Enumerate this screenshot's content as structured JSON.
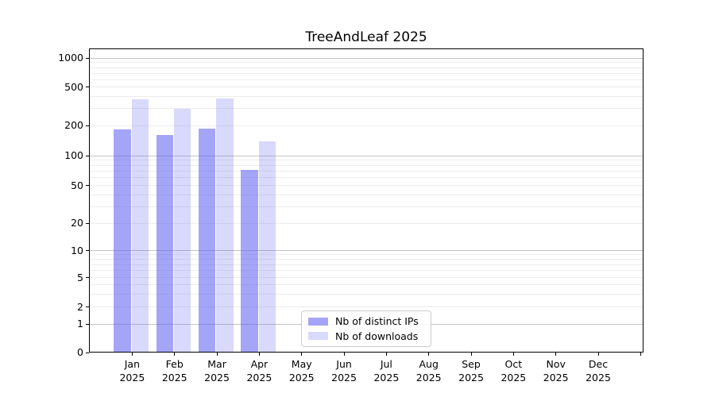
{
  "chart_data": {
    "type": "bar",
    "title": "TreeAndLeaf 2025",
    "year": "2025",
    "months": [
      "Jan",
      "Feb",
      "Mar",
      "Apr",
      "May",
      "Jun",
      "Jul",
      "Aug",
      "Sep",
      "Oct",
      "Nov",
      "Dec"
    ],
    "series": [
      {
        "name": "Nb of distinct IPs",
        "color": "rgba(82,82,241,0.52)",
        "values": [
          185,
          163,
          188,
          72,
          null,
          null,
          null,
          null,
          null,
          null,
          null,
          null
        ]
      },
      {
        "name": "Nb of downloads",
        "color": "rgba(82,82,241,0.22)",
        "values": [
          375,
          300,
          382,
          140,
          null,
          null,
          null,
          null,
          null,
          null,
          null,
          null
        ]
      }
    ],
    "y_axis": {
      "scale": "symlog",
      "ticks": [
        0,
        1,
        2,
        5,
        10,
        20,
        50,
        100,
        200,
        500,
        1000
      ],
      "ylim": [
        0,
        1100
      ]
    },
    "x_axis": {
      "tick_count": 13,
      "labeled_ticks": 12
    },
    "legend": {
      "position": "lower center"
    },
    "colors": {
      "major_grid": "#c4c4c4",
      "minor_grid": "#ececec",
      "axis": "#000000",
      "text": "#000000",
      "background": "#ffffff"
    },
    "grid": {
      "major_on": true,
      "minor_on": true
    }
  }
}
